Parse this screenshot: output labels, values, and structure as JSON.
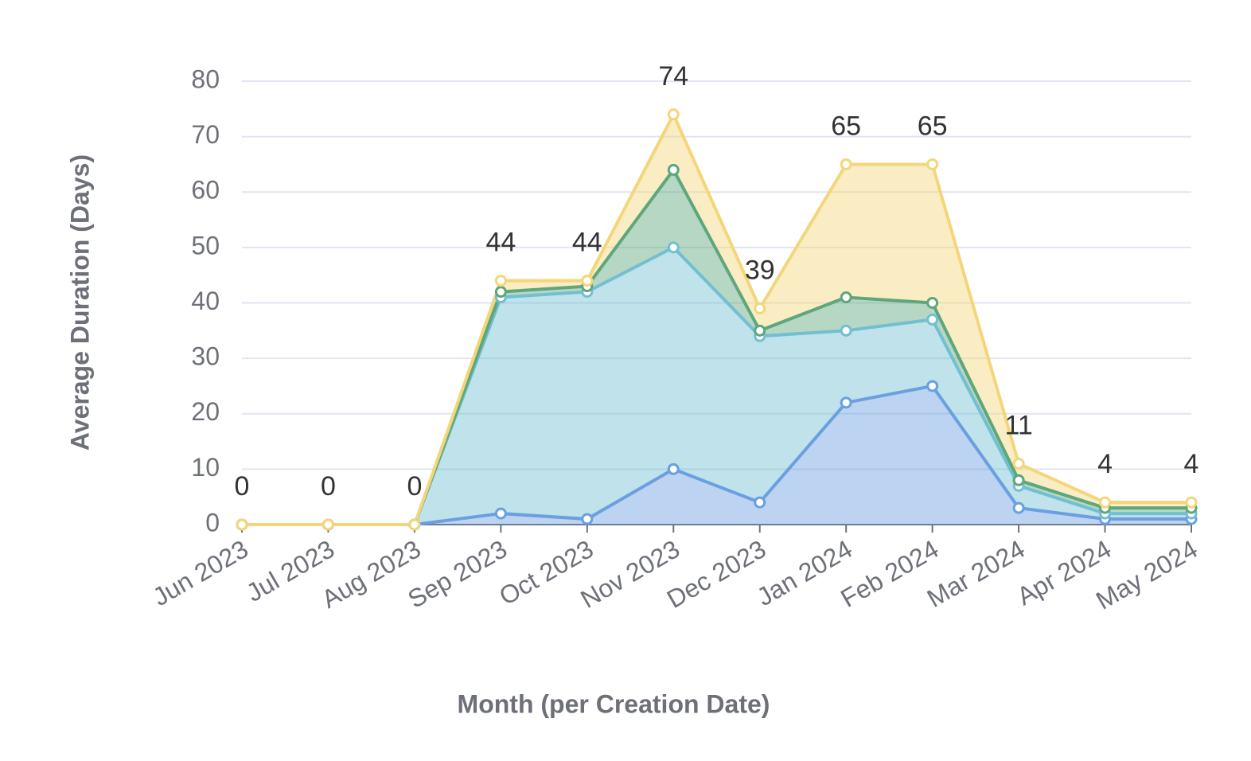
{
  "chart_data": {
    "type": "area",
    "stacked": true,
    "grid": true,
    "x_label": "Month (per Creation Date)",
    "y_label": "Average Duration (Days)",
    "categories": [
      "Jun 2023",
      "Jul 2023",
      "Aug 2023",
      "Sep 2023",
      "Oct 2023",
      "Nov 2023",
      "Dec 2023",
      "Jan 2024",
      "Feb 2024",
      "Mar 2024",
      "Apr 2024",
      "May 2024"
    ],
    "series": [
      {
        "color": "#6a9fe0",
        "values": [
          0,
          0,
          0,
          2,
          1,
          10,
          4,
          22,
          25,
          3,
          1,
          1
        ]
      },
      {
        "color": "#72bfd2",
        "values": [
          0,
          0,
          0,
          39,
          41,
          40,
          30,
          13,
          12,
          4,
          1,
          1
        ]
      },
      {
        "color": "#5ea67c",
        "values": [
          0,
          0,
          0,
          1,
          1,
          14,
          1,
          6,
          3,
          1,
          1,
          1
        ]
      },
      {
        "color": "#f4d67a",
        "values": [
          0,
          0,
          0,
          2,
          1,
          10,
          4,
          24,
          25,
          3,
          1,
          1
        ]
      }
    ],
    "totals": [
      0,
      0,
      0,
      44,
      44,
      74,
      39,
      65,
      65,
      11,
      4,
      4
    ],
    "ylim": [
      0,
      80
    ],
    "yticks": [
      0,
      10,
      20,
      30,
      40,
      50,
      60,
      70,
      80
    ]
  }
}
